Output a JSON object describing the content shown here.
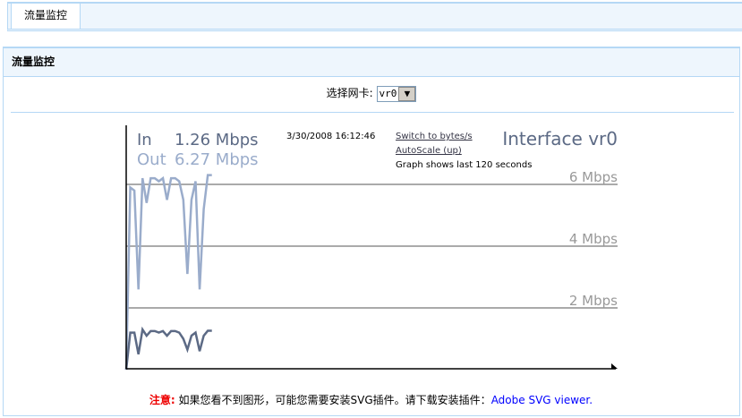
{
  "tabs": [
    {
      "label": "流量监控",
      "active": true
    }
  ],
  "panel": {
    "title": "流量监控"
  },
  "nic": {
    "label": "选择网卡:",
    "selected": "vr0"
  },
  "graph": {
    "in_label": "In",
    "in_value": "1.26 Mbps",
    "out_label": "Out",
    "out_value": "6.27 Mbps",
    "timestamp": "3/30/2008 16:12:46",
    "switch_link": "Switch to bytes/s",
    "autoscale_link": "AutoScale (up)",
    "window_text": "Graph shows last 120 seconds",
    "interface_title": "Interface vr0",
    "grid_labels": [
      "6 Mbps",
      "4 Mbps",
      "2 Mbps"
    ]
  },
  "chart_data": {
    "type": "line",
    "xlabel": "",
    "ylabel": "",
    "x_range_seconds": [
      0,
      120
    ],
    "y_unit": "Mbps",
    "grid_values": [
      2,
      4,
      6
    ],
    "series": [
      {
        "name": "Out",
        "color": "#9aaccb",
        "values": [
          0,
          5.9,
          5.8,
          2.6,
          6.2,
          5.4,
          6.2,
          6.2,
          6.1,
          6.2,
          5.5,
          6.2,
          6.2,
          6.1,
          5.5,
          3.1,
          5.5,
          6.1,
          2.6,
          5.2,
          6.3,
          6.3
        ]
      },
      {
        "name": "In",
        "color": "#5c6a85",
        "values": [
          0,
          1.2,
          1.2,
          0.5,
          1.3,
          1.1,
          1.25,
          1.25,
          1.2,
          1.25,
          1.1,
          1.25,
          1.25,
          1.2,
          1.0,
          0.65,
          1.1,
          1.2,
          0.6,
          1.1,
          1.26,
          1.26
        ]
      }
    ]
  },
  "note": {
    "warn": "注意:",
    "text": " 如果您看不到图形，可能您需要安装SVG插件。请下载安装插件：",
    "link": "Adobe SVG viewer."
  }
}
